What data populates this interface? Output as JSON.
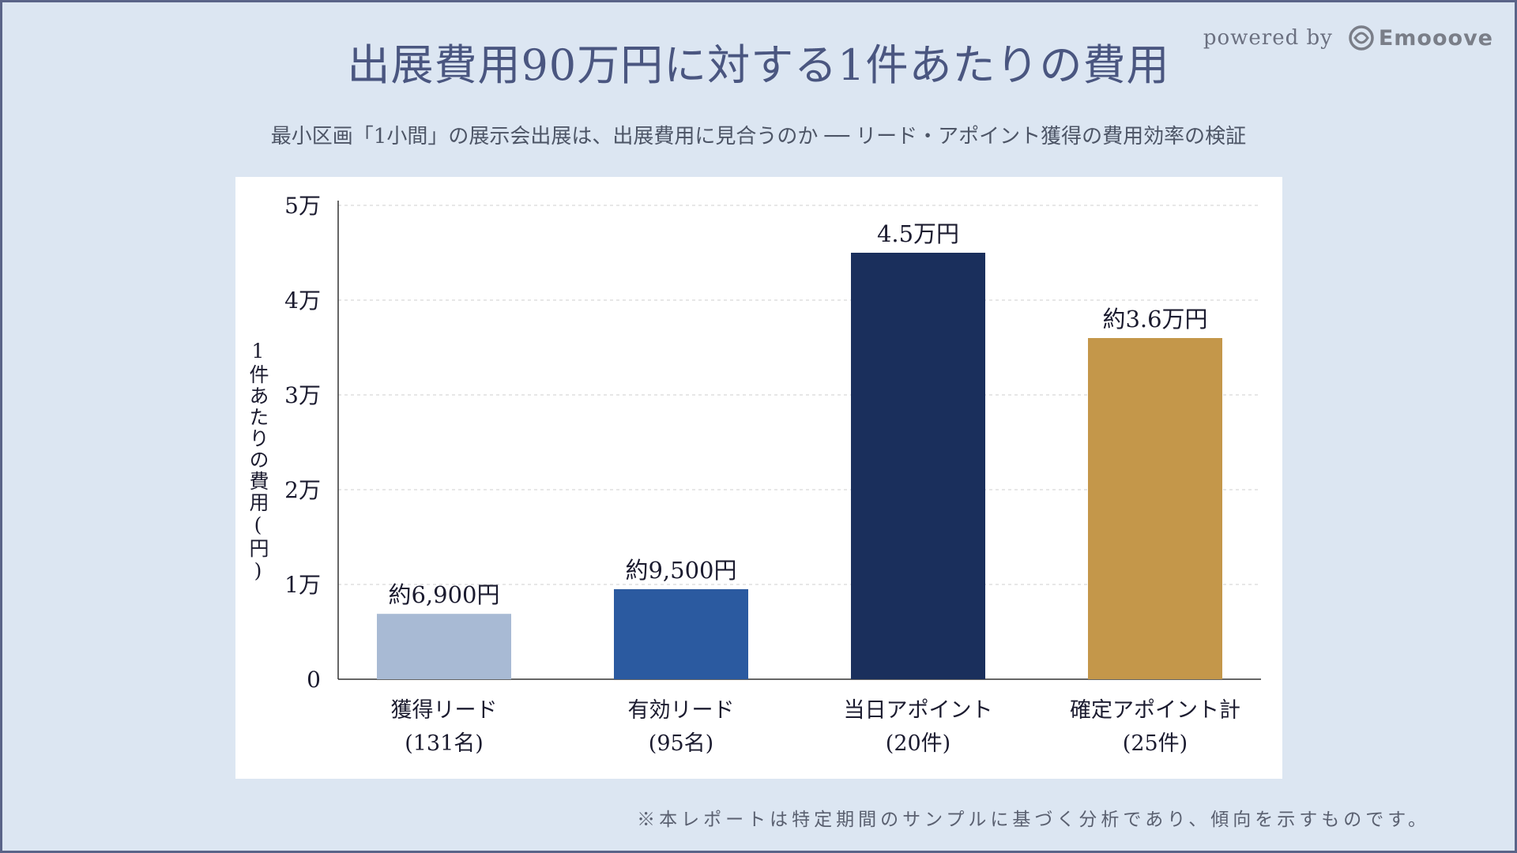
{
  "header": {
    "title": "出展費用90万円に対する1件あたりの費用",
    "subtitle": "最小区画「1小間」の展示会出展は、出展費用に見合うのか ── リード・アポイント獲得の費用効率の検証",
    "powered_by": "powered by",
    "brand_name": "Emooove",
    "brand_icon": "emooove-logo-icon"
  },
  "footer": {
    "note": "※本レポートは特定期間のサンプルに基づく分析であり、傾向を示すものです。"
  },
  "chart_data": {
    "type": "bar",
    "ylabel": "1件あたりの費用(円)",
    "xlabel": "",
    "ylim": [
      0,
      50000
    ],
    "yticks": [
      {
        "value": 0,
        "label": "0"
      },
      {
        "value": 10000,
        "label": "1万"
      },
      {
        "value": 20000,
        "label": "2万"
      },
      {
        "value": 30000,
        "label": "3万"
      },
      {
        "value": 40000,
        "label": "4万"
      },
      {
        "value": 50000,
        "label": "5万"
      }
    ],
    "grid": true,
    "categories": [
      {
        "name": "獲得リード",
        "sub": "(131名)"
      },
      {
        "name": "有効リード",
        "sub": "(95名)"
      },
      {
        "name": "当日アポイント",
        "sub": "(20件)"
      },
      {
        "name": "確定アポイント計",
        "sub": "(25件)"
      }
    ],
    "values": [
      6900,
      9500,
      45000,
      36000
    ],
    "data_labels": [
      "約6,900円",
      "約9,500円",
      "4.5万円",
      "約3.6万円"
    ],
    "colors": [
      "#a8bad4",
      "#2b5aa0",
      "#1a2f5c",
      "#c4974a"
    ]
  }
}
